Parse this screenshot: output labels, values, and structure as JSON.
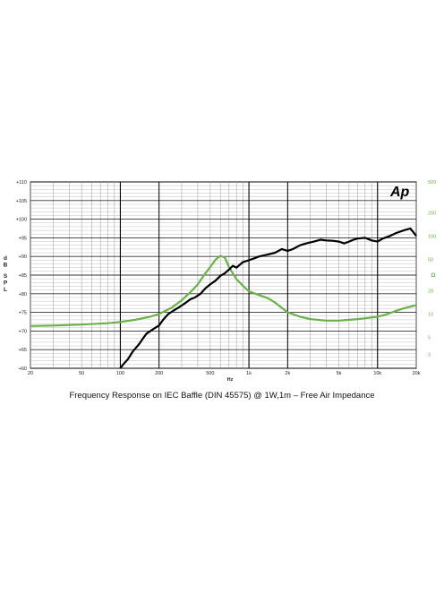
{
  "caption": "Frequency Response on IEC Baffle (DIN 45575)  @ 1W,1m – Free  Air Impedance",
  "logo_text": "Ap",
  "chart_data": {
    "type": "line",
    "title": "Frequency Response on IEC Baffle (DIN 45575)  @ 1W,1m – Free  Air Impedance",
    "xlabel": "Hz",
    "ylabel": "dB SPL",
    "ylabel_right": "Ω",
    "x_scale": "log",
    "xlim": [
      20,
      20000
    ],
    "ylim": [
      60,
      110
    ],
    "ylim_right": [
      2,
      500
    ],
    "y_right_scale": "log",
    "grid": true,
    "x_ticks": [
      {
        "value": 20,
        "label": "20"
      },
      {
        "value": 50,
        "label": "50"
      },
      {
        "value": 100,
        "label": "100"
      },
      {
        "value": 200,
        "label": "200"
      },
      {
        "value": 500,
        "label": "500"
      },
      {
        "value": 1000,
        "label": "1k"
      },
      {
        "value": 2000,
        "label": "2k"
      },
      {
        "value": 5000,
        "label": "5k"
      },
      {
        "value": 10000,
        "label": "10k"
      },
      {
        "value": 20000,
        "label": "20k"
      }
    ],
    "y_ticks_left": [
      "+60",
      "+65",
      "+70",
      "+75",
      "+80",
      "+85",
      "+90",
      "+95",
      "+100",
      "+105",
      "+110"
    ],
    "y_ticks_right": [
      {
        "value": 3,
        "label": "3"
      },
      {
        "value": 5,
        "label": "5"
      },
      {
        "value": 10,
        "label": "10"
      },
      {
        "value": 20,
        "label": "20"
      },
      {
        "value": 50,
        "label": "50"
      },
      {
        "value": 100,
        "label": "100"
      },
      {
        "value": 200,
        "label": "200"
      },
      {
        "value": 500,
        "label": "500"
      }
    ],
    "series": [
      {
        "axis": "left",
        "color": "#000000",
        "points": [
          [
            100,
            60
          ],
          [
            105,
            61
          ],
          [
            115,
            62.5
          ],
          [
            125,
            64.5
          ],
          [
            140,
            66.5
          ],
          [
            150,
            68
          ],
          [
            160,
            69.3
          ],
          [
            180,
            70.5
          ],
          [
            200,
            71.5
          ],
          [
            215,
            73
          ],
          [
            235,
            74.5
          ],
          [
            260,
            75.5
          ],
          [
            290,
            76.5
          ],
          [
            320,
            77.5
          ],
          [
            350,
            78.5
          ],
          [
            380,
            79
          ],
          [
            420,
            80
          ],
          [
            460,
            81.5
          ],
          [
            500,
            82.5
          ],
          [
            550,
            83.5
          ],
          [
            600,
            84.8
          ],
          [
            650,
            85.5
          ],
          [
            700,
            86.5
          ],
          [
            750,
            87.5
          ],
          [
            800,
            87
          ],
          [
            850,
            87.8
          ],
          [
            900,
            88.5
          ],
          [
            1000,
            89
          ],
          [
            1100,
            89.5
          ],
          [
            1200,
            90
          ],
          [
            1400,
            90.5
          ],
          [
            1600,
            91
          ],
          [
            1800,
            92
          ],
          [
            2000,
            91.5
          ],
          [
            2200,
            92
          ],
          [
            2500,
            93
          ],
          [
            2800,
            93.5
          ],
          [
            3200,
            94
          ],
          [
            3600,
            94.5
          ],
          [
            4000,
            94.3
          ],
          [
            4500,
            94.2
          ],
          [
            5000,
            94
          ],
          [
            5500,
            93.5
          ],
          [
            6000,
            94
          ],
          [
            6500,
            94.5
          ],
          [
            7000,
            94.8
          ],
          [
            8000,
            95
          ],
          [
            9000,
            94.3
          ],
          [
            10000,
            94
          ],
          [
            11000,
            94.8
          ],
          [
            12500,
            95.5
          ],
          [
            14000,
            96.3
          ],
          [
            16000,
            97
          ],
          [
            18000,
            97.5
          ],
          [
            19000,
            96.5
          ],
          [
            20000,
            95.5
          ]
        ]
      },
      {
        "axis": "right",
        "color": "#6bb14a",
        "points": [
          [
            20,
            7
          ],
          [
            30,
            7.1
          ],
          [
            50,
            7.3
          ],
          [
            80,
            7.6
          ],
          [
            100,
            7.9
          ],
          [
            130,
            8.4
          ],
          [
            170,
            9.2
          ],
          [
            200,
            10
          ],
          [
            250,
            12
          ],
          [
            300,
            15
          ],
          [
            350,
            19
          ],
          [
            400,
            24
          ],
          [
            450,
            32
          ],
          [
            500,
            40
          ],
          [
            550,
            50
          ],
          [
            600,
            56
          ],
          [
            650,
            53
          ],
          [
            700,
            40
          ],
          [
            800,
            28
          ],
          [
            900,
            23
          ],
          [
            1000,
            19.5
          ],
          [
            1200,
            17.5
          ],
          [
            1400,
            16
          ],
          [
            1600,
            14
          ],
          [
            1800,
            12
          ],
          [
            2000,
            10.5
          ],
          [
            2500,
            9.2
          ],
          [
            3000,
            8.6
          ],
          [
            4000,
            8.2
          ],
          [
            5000,
            8.2
          ],
          [
            6000,
            8.4
          ],
          [
            7000,
            8.6
          ],
          [
            8000,
            8.8
          ],
          [
            10000,
            9.2
          ],
          [
            12000,
            10
          ],
          [
            14000,
            11
          ],
          [
            16000,
            11.8
          ],
          [
            18000,
            12.4
          ],
          [
            20000,
            13
          ]
        ]
      }
    ]
  }
}
